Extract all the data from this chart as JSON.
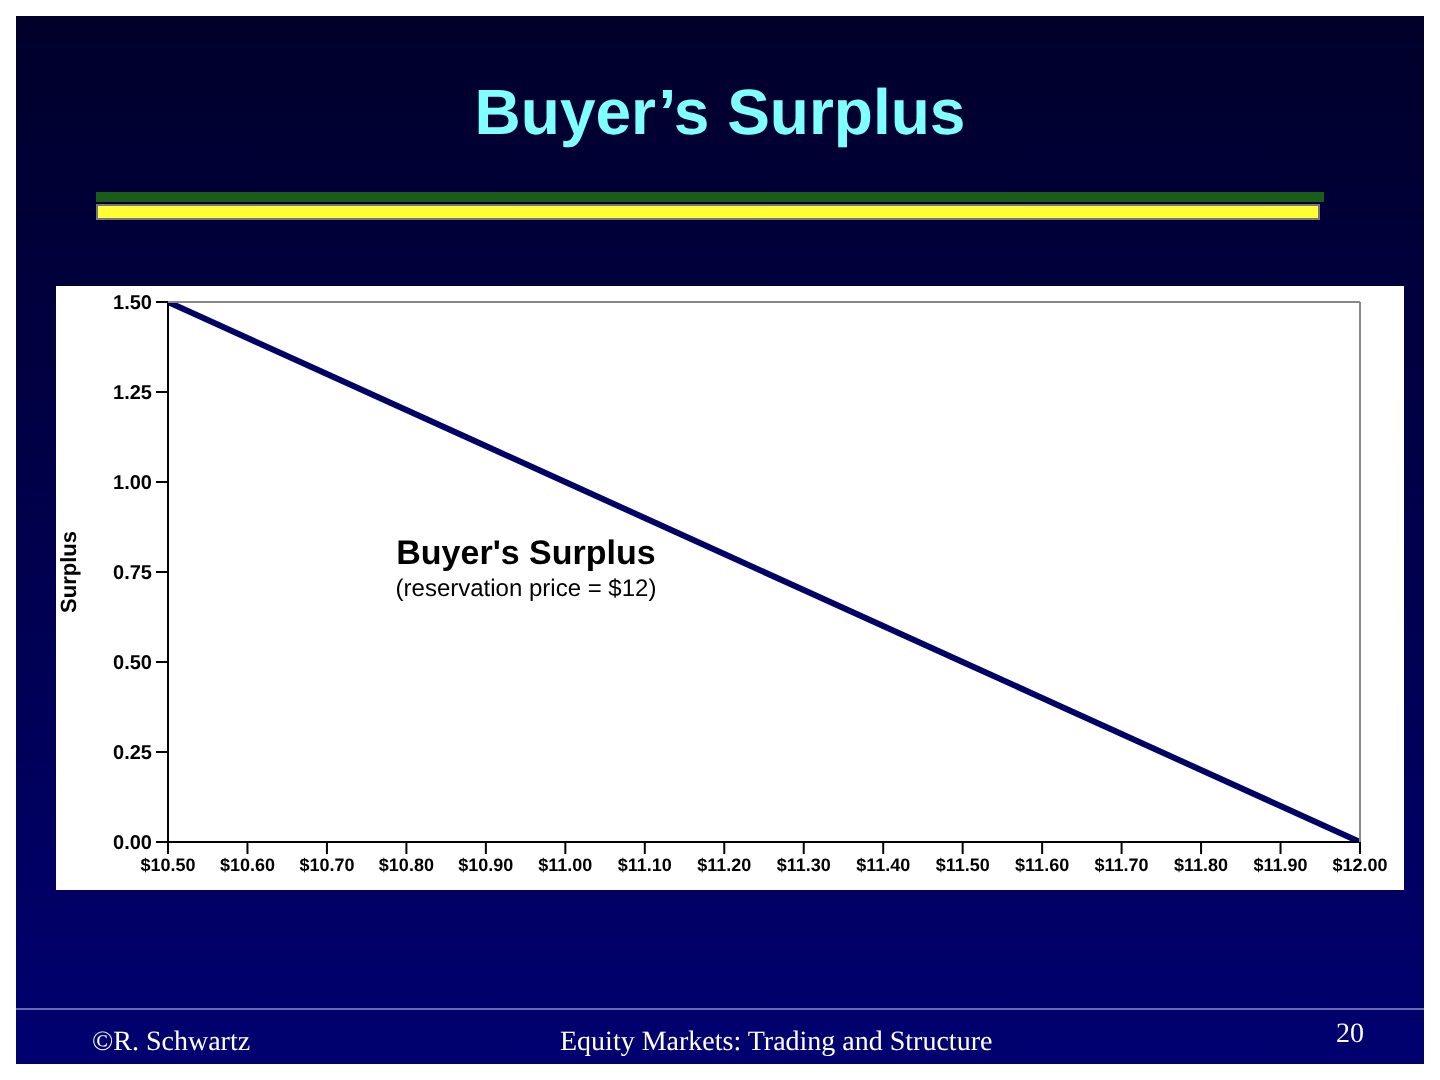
{
  "chart_data": {
    "type": "line",
    "title": "Buyer’s Surplus",
    "ylabel": "Surplus",
    "annotations": [
      "Buyer's Surplus",
      "(reservation price = $12)",
      "©R. Schwartz",
      "Equity Markets: Trading and Structure",
      "20"
    ],
    "x": [
      10.5,
      10.6,
      10.7,
      10.8,
      10.9,
      11.0,
      11.1,
      11.2,
      11.3,
      11.4,
      11.5,
      11.6,
      11.7,
      11.8,
      11.9,
      12.0
    ],
    "series": [
      {
        "color": "#000066",
        "values": [
          1.5,
          1.4,
          1.3,
          1.2,
          1.1,
          1.0,
          0.9,
          0.8,
          0.7,
          0.6,
          0.5,
          0.4,
          0.3,
          0.2,
          0.1,
          0.0
        ]
      }
    ],
    "xlim": [
      10.5,
      12.0
    ],
    "xticks": [
      {
        "value": 10.5,
        "label": "$10.50"
      },
      {
        "value": 10.6,
        "label": "$10.60"
      },
      {
        "value": 10.7,
        "label": "$10.70"
      },
      {
        "value": 10.8,
        "label": "$10.80"
      },
      {
        "value": 10.9,
        "label": "$10.90"
      },
      {
        "value": 11.0,
        "label": "$11.00"
      },
      {
        "value": 11.1,
        "label": "$11.10"
      },
      {
        "value": 11.2,
        "label": "$11.20"
      },
      {
        "value": 11.3,
        "label": "$11.30"
      },
      {
        "value": 11.4,
        "label": "$11.40"
      },
      {
        "value": 11.5,
        "label": "$11.50"
      },
      {
        "value": 11.6,
        "label": "$11.60"
      },
      {
        "value": 11.7,
        "label": "$11.70"
      },
      {
        "value": 11.8,
        "label": "$11.80"
      },
      {
        "value": 11.9,
        "label": "$11.90"
      },
      {
        "value": 12.0,
        "label": "$12.00"
      }
    ],
    "ylim": [
      0,
      1.5
    ],
    "yticks": [
      {
        "value": 0,
        "label": "0.00"
      },
      {
        "value": 0.25,
        "label": "0.25"
      },
      {
        "value": 0.5,
        "label": "0.50"
      },
      {
        "value": 0.75,
        "label": "0.75"
      },
      {
        "value": 1.0,
        "label": "1.00"
      },
      {
        "value": 1.25,
        "label": "1.25"
      },
      {
        "value": 1.5,
        "label": "1.50"
      }
    ],
    "grid": false,
    "legend": false,
    "marker": "none",
    "line_style": "solid"
  }
}
